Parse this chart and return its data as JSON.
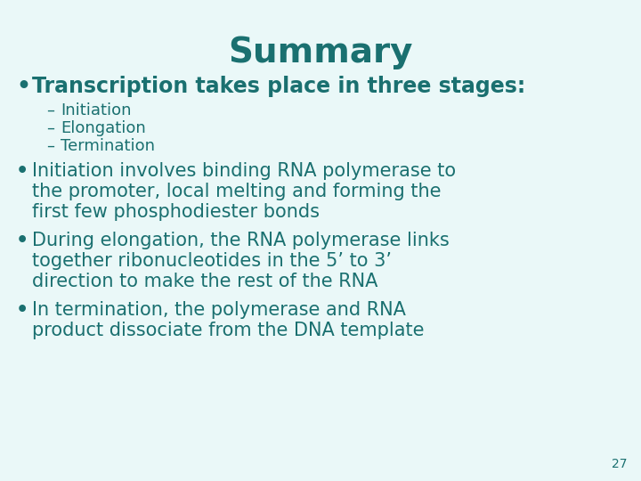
{
  "title": "Summary",
  "title_color": "#1a7070",
  "title_fontsize": 28,
  "background_color": "#eaf8f8",
  "text_color": "#1a7070",
  "bullet1": "Transcription takes place in three stages:",
  "bullet1_fontsize": 17,
  "sub_bullets": [
    "Initiation",
    "Elongation",
    "Termination"
  ],
  "sub_bullet_fontsize": 13,
  "bullet2_line1": "Initiation involves binding RNA polymerase to",
  "bullet2_line2": "the promoter, local melting and forming the",
  "bullet2_line3": "first few phosphodiester bonds",
  "bullet3_line1": "During elongation, the RNA polymerase links",
  "bullet3_line2": "together ribonucleotides in the 5’ to 3’",
  "bullet3_line3": "direction to make the rest of the RNA",
  "bullet4_line1": "In termination, the polymerase and RNA",
  "bullet4_line2": "product dissociate from the DNA template",
  "bullet_fontsize": 15,
  "page_number": "27",
  "page_number_fontsize": 10
}
